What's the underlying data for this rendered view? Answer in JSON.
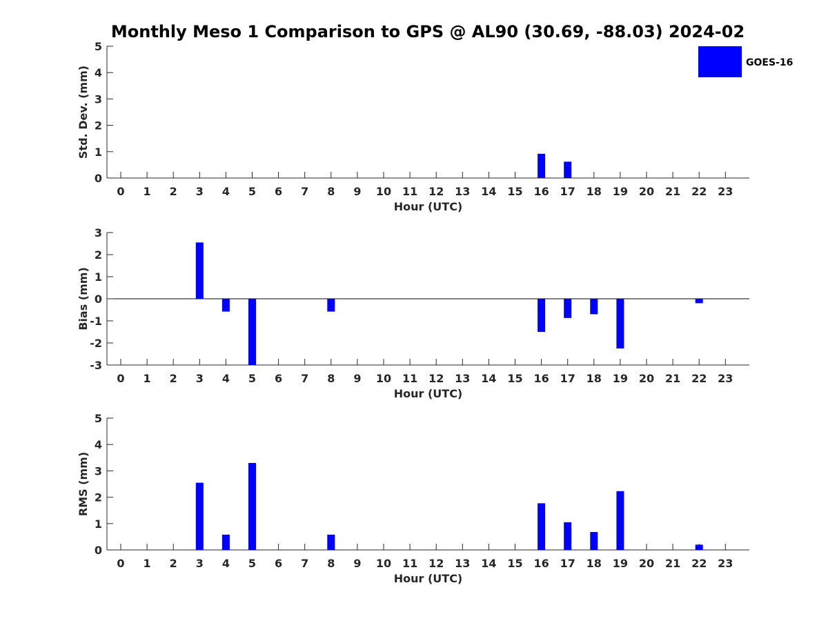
{
  "title": "Monthly Meso 1 Comparison to GPS @ AL90 (30.69, -88.03) 2024-02",
  "legend": {
    "label": "GOES-16",
    "color": "#0000ff",
    "location": "top-right"
  },
  "chart_data": [
    {
      "type": "bar",
      "ylabel": "Std. Dev. (mm)",
      "xlabel": "Hour (UTC)",
      "ylim": [
        0,
        5
      ],
      "yticks": [
        0,
        1,
        2,
        3,
        4,
        5
      ],
      "categories": [
        "0",
        "1",
        "2",
        "3",
        "4",
        "5",
        "6",
        "7",
        "8",
        "9",
        "10",
        "11",
        "12",
        "13",
        "14",
        "15",
        "16",
        "17",
        "18",
        "19",
        "20",
        "21",
        "22",
        "23"
      ],
      "series": [
        {
          "name": "GOES-16",
          "values": [
            0,
            0,
            0,
            0,
            0,
            0,
            0,
            0,
            0,
            0,
            0,
            0,
            0,
            0,
            0,
            0,
            0.92,
            0.62,
            0,
            0,
            0,
            0,
            0,
            0
          ]
        }
      ]
    },
    {
      "type": "bar",
      "ylabel": "Bias (mm)",
      "xlabel": "Hour (UTC)",
      "ylim": [
        -3,
        3
      ],
      "yticks": [
        -3,
        -2,
        -1,
        0,
        1,
        2,
        3
      ],
      "zero_line": true,
      "categories": [
        "0",
        "1",
        "2",
        "3",
        "4",
        "5",
        "6",
        "7",
        "8",
        "9",
        "10",
        "11",
        "12",
        "13",
        "14",
        "15",
        "16",
        "17",
        "18",
        "19",
        "20",
        "21",
        "22",
        "23"
      ],
      "series": [
        {
          "name": "GOES-16",
          "values": [
            0,
            0,
            0,
            2.55,
            -0.58,
            -3.0,
            0,
            0,
            -0.58,
            0,
            0,
            0,
            0,
            0,
            0,
            0,
            -1.5,
            -0.87,
            -0.7,
            -2.25,
            0,
            0,
            -0.2,
            0
          ]
        }
      ]
    },
    {
      "type": "bar",
      "ylabel": "RMS (mm)",
      "xlabel": "Hour (UTC)",
      "ylim": [
        0,
        5
      ],
      "yticks": [
        0,
        1,
        2,
        3,
        4,
        5
      ],
      "categories": [
        "0",
        "1",
        "2",
        "3",
        "4",
        "5",
        "6",
        "7",
        "8",
        "9",
        "10",
        "11",
        "12",
        "13",
        "14",
        "15",
        "16",
        "17",
        "18",
        "19",
        "20",
        "21",
        "22",
        "23"
      ],
      "series": [
        {
          "name": "GOES-16",
          "values": [
            0,
            0,
            0,
            2.55,
            0.58,
            3.3,
            0,
            0,
            0.58,
            0,
            0,
            0,
            0,
            0,
            0,
            0,
            1.77,
            1.05,
            0.68,
            2.23,
            0,
            0,
            0.2,
            0
          ]
        }
      ]
    }
  ]
}
